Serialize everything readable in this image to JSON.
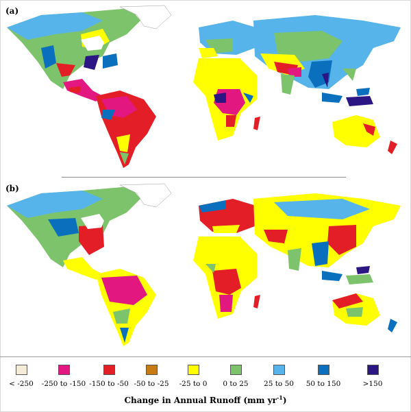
{
  "panels": [
    {
      "label": "(a)"
    },
    {
      "label": "(b)"
    }
  ],
  "legend": {
    "title": "Change in Annual Runoff (mm yr",
    "title_exp": "-1",
    "title_close": ")",
    "items": [
      {
        "label": "< -250",
        "color": "#f6ead8"
      },
      {
        "label": "-250 to -150",
        "color": "#e2177f"
      },
      {
        "label": "-150 to -50",
        "color": "#e41e26"
      },
      {
        "label": "-50 to -25",
        "color": "#c77b14"
      },
      {
        "label": "-25 to 0",
        "color": "#ffff00"
      },
      {
        "label": "0 to 25",
        "color": "#7dc36b"
      },
      {
        "label": "25 to 50",
        "color": "#56b4ea"
      },
      {
        "label": "50 to 150",
        "color": "#0a6fbd"
      },
      {
        "label": ">150",
        "color": "#2b1684"
      }
    ]
  }
}
